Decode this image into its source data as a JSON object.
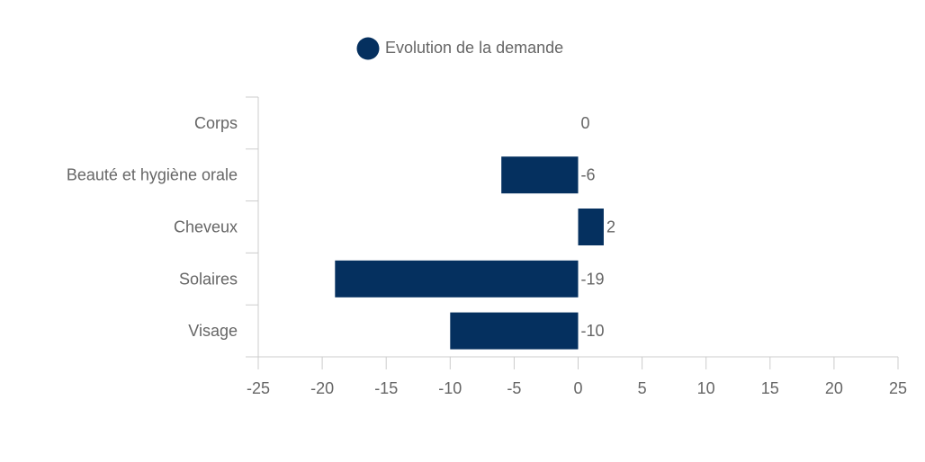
{
  "chart_data": {
    "type": "bar",
    "orientation": "horizontal",
    "categories": [
      "Corps",
      "Beauté et hygiène orale",
      "Cheveux",
      "Solaires",
      "Visage"
    ],
    "series": [
      {
        "name": "Evolution de la demande",
        "values": [
          0,
          -6,
          2,
          -19,
          -10
        ],
        "color": "#05305f"
      }
    ],
    "data_labels": [
      "0",
      "-6",
      "2",
      "-19",
      "-10"
    ],
    "x_ticks": [
      -25,
      -20,
      -15,
      -10,
      -5,
      0,
      5,
      10,
      15,
      20,
      25
    ],
    "x_tick_labels": [
      "-25",
      "-20",
      "-15",
      "-10",
      "-5",
      "0",
      "5",
      "10",
      "15",
      "20",
      "25"
    ],
    "xlim": [
      -25,
      25
    ],
    "grid": false,
    "legend_position": "top-center"
  }
}
